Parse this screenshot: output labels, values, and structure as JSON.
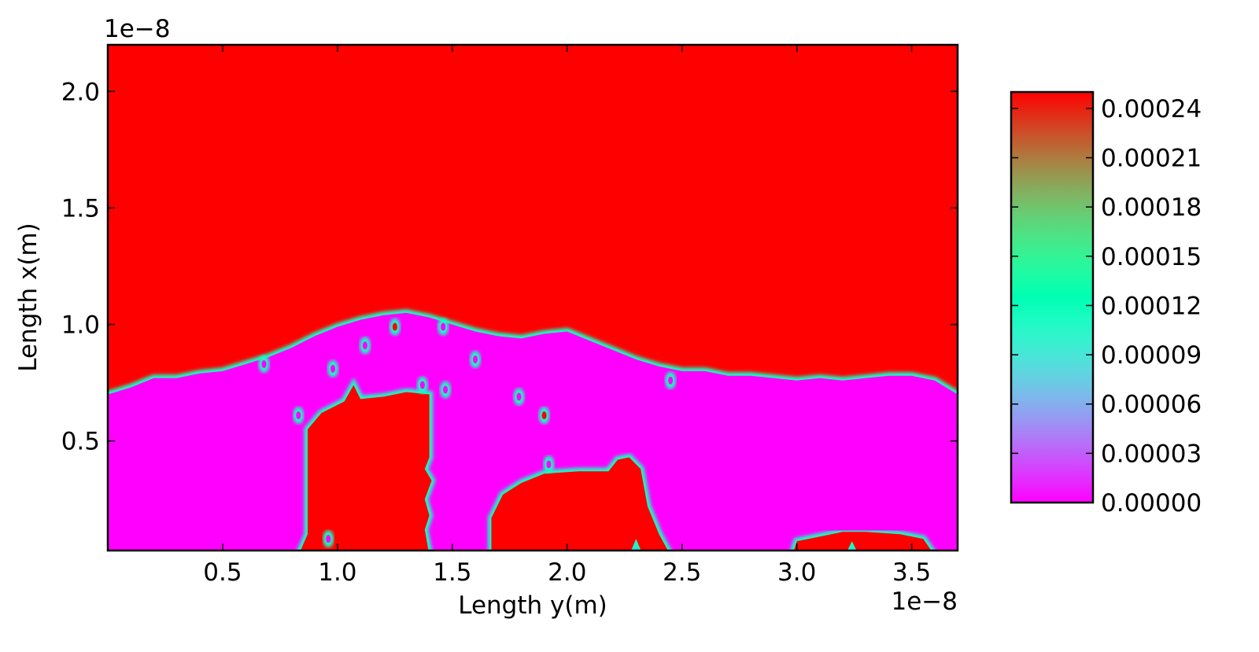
{
  "chart_data": {
    "type": "heatmap",
    "title": "",
    "xlabel": "Length y(m)",
    "ylabel": "Length x(m)",
    "x_offset_text": "1e−8",
    "y_offset_text": "1e−8",
    "xlim": [
      0.0,
      3.7
    ],
    "ylim": [
      0.03,
      2.2
    ],
    "x_ticks": [
      0.5,
      1.0,
      1.5,
      2.0,
      2.5,
      3.0,
      3.5
    ],
    "x_tick_labels": [
      "0.5",
      "1.0",
      "1.5",
      "2.0",
      "2.5",
      "3.0",
      "3.5"
    ],
    "y_ticks": [
      0.5,
      1.0,
      1.5,
      2.0
    ],
    "y_tick_labels": [
      "0.5",
      "1.0",
      "1.5",
      "2.0"
    ],
    "colormap": "rainbow",
    "colorbar": {
      "range": [
        0.0,
        0.00025
      ],
      "ticks": [
        0.0,
        3e-05,
        6e-05,
        9e-05,
        0.00012,
        0.00015,
        0.00018,
        0.00021,
        0.00024
      ],
      "tick_labels": [
        "0.00000",
        "0.00003",
        "0.00006",
        "0.00009",
        "0.00012",
        "0.00015",
        "0.00018",
        "0.00021",
        "0.00024"
      ]
    },
    "high_value": 0.00025,
    "low_value": 0.0,
    "low_region_boundary_top": [
      [
        0.0,
        0.7
      ],
      [
        0.1,
        0.73
      ],
      [
        0.2,
        0.77
      ],
      [
        0.3,
        0.77
      ],
      [
        0.4,
        0.79
      ],
      [
        0.5,
        0.8
      ],
      [
        0.6,
        0.83
      ],
      [
        0.7,
        0.86
      ],
      [
        0.8,
        0.9
      ],
      [
        0.9,
        0.95
      ],
      [
        1.0,
        0.99
      ],
      [
        1.1,
        1.02
      ],
      [
        1.2,
        1.04
      ],
      [
        1.3,
        1.05
      ],
      [
        1.4,
        1.03
      ],
      [
        1.5,
        1.0
      ],
      [
        1.6,
        0.97
      ],
      [
        1.7,
        0.95
      ],
      [
        1.8,
        0.94
      ],
      [
        1.9,
        0.96
      ],
      [
        2.0,
        0.97
      ],
      [
        2.1,
        0.93
      ],
      [
        2.2,
        0.89
      ],
      [
        2.3,
        0.85
      ],
      [
        2.4,
        0.82
      ],
      [
        2.5,
        0.8
      ],
      [
        2.6,
        0.8
      ],
      [
        2.7,
        0.78
      ],
      [
        2.8,
        0.78
      ],
      [
        2.9,
        0.77
      ],
      [
        3.0,
        0.76
      ],
      [
        3.1,
        0.77
      ],
      [
        3.2,
        0.76
      ],
      [
        3.3,
        0.77
      ],
      [
        3.4,
        0.78
      ],
      [
        3.5,
        0.78
      ],
      [
        3.6,
        0.76
      ],
      [
        3.7,
        0.7
      ]
    ],
    "high_islands": [
      [
        [
          0.83,
          0.03
        ],
        [
          0.87,
          0.1
        ],
        [
          0.87,
          0.55
        ],
        [
          0.93,
          0.62
        ],
        [
          1.03,
          0.67
        ],
        [
          1.07,
          0.74
        ],
        [
          1.1,
          0.68
        ],
        [
          1.2,
          0.69
        ],
        [
          1.3,
          0.71
        ],
        [
          1.4,
          0.7
        ],
        [
          1.4,
          0.43
        ],
        [
          1.38,
          0.38
        ],
        [
          1.41,
          0.33
        ],
        [
          1.38,
          0.25
        ],
        [
          1.4,
          0.18
        ],
        [
          1.38,
          0.12
        ],
        [
          1.4,
          0.03
        ]
      ],
      [
        [
          1.67,
          0.03
        ],
        [
          1.67,
          0.17
        ],
        [
          1.72,
          0.27
        ],
        [
          1.8,
          0.32
        ],
        [
          1.9,
          0.36
        ],
        [
          2.05,
          0.37
        ],
        [
          2.18,
          0.37
        ],
        [
          2.22,
          0.42
        ],
        [
          2.27,
          0.43
        ],
        [
          2.32,
          0.38
        ],
        [
          2.35,
          0.22
        ],
        [
          2.4,
          0.1
        ],
        [
          2.45,
          0.03
        ],
        [
          2.33,
          0.03
        ],
        [
          2.3,
          0.08
        ],
        [
          2.27,
          0.03
        ]
      ],
      [
        [
          2.98,
          0.03
        ],
        [
          3.0,
          0.07
        ],
        [
          3.1,
          0.09
        ],
        [
          3.2,
          0.11
        ],
        [
          3.3,
          0.11
        ],
        [
          3.45,
          0.1
        ],
        [
          3.55,
          0.08
        ],
        [
          3.6,
          0.03
        ],
        [
          3.27,
          0.03
        ],
        [
          3.24,
          0.07
        ],
        [
          3.21,
          0.03
        ]
      ]
    ],
    "spots": [
      [
        0.68,
        0.83,
        "low"
      ],
      [
        0.83,
        0.61,
        "low"
      ],
      [
        0.96,
        0.08,
        "low"
      ],
      [
        0.98,
        0.81,
        "low"
      ],
      [
        1.12,
        0.91,
        "low"
      ],
      [
        1.25,
        0.99,
        "high"
      ],
      [
        1.37,
        0.74,
        "low"
      ],
      [
        1.46,
        0.99,
        "low"
      ],
      [
        1.47,
        0.72,
        "low"
      ],
      [
        1.6,
        0.85,
        "low"
      ],
      [
        1.79,
        0.69,
        "low"
      ],
      [
        1.9,
        0.61,
        "high"
      ],
      [
        1.92,
        0.4,
        "low"
      ],
      [
        2.45,
        0.76,
        "low"
      ]
    ]
  }
}
